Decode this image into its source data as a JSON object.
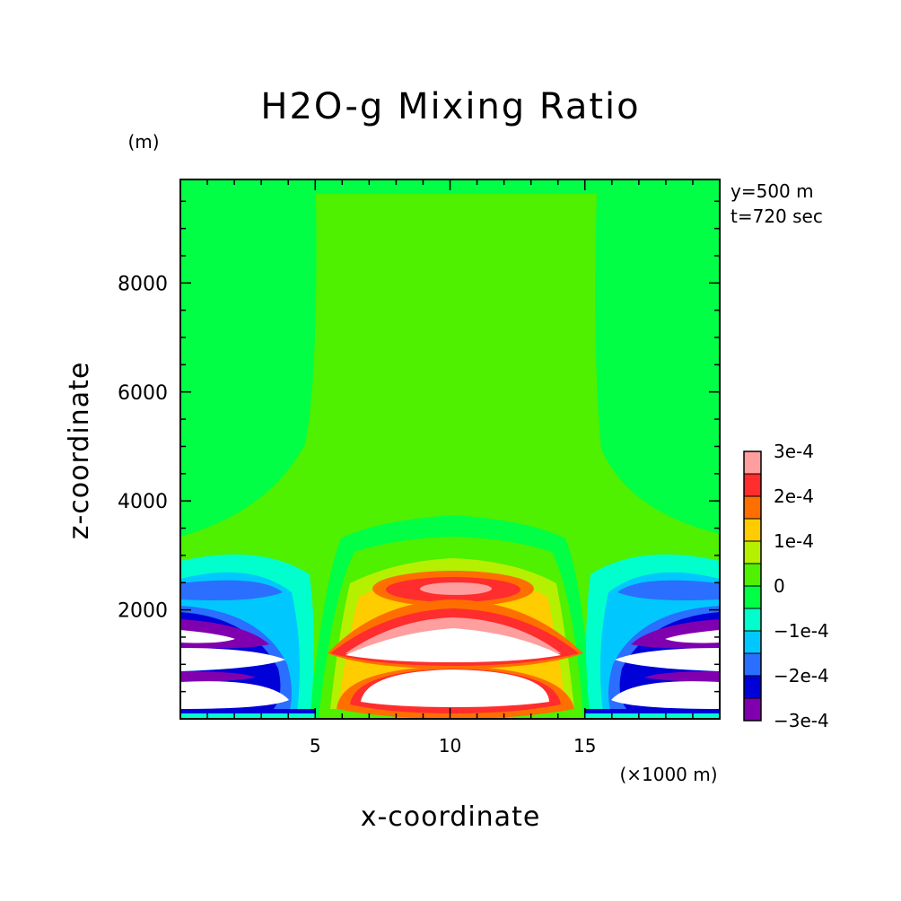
{
  "chart_data": {
    "type": "heatmap",
    "title": "H2O-g Mixing Ratio",
    "xlabel": "x-coordinate",
    "ylabel": "z-coordinate",
    "x_unit_label": "(×1000 m)",
    "y_unit_label": "(m)",
    "annotations": [
      "y=500 m",
      "t=720 sec"
    ],
    "xlim": [
      0,
      20
    ],
    "ylim": [
      0,
      9900
    ],
    "x_ticks": [
      5,
      10,
      15
    ],
    "y_ticks": [
      2000,
      4000,
      6000,
      8000
    ],
    "grid": false,
    "colorbar": {
      "placement": "right",
      "levels": [
        "3e-4",
        "2e-4",
        "1e-4",
        "0",
        "−1e-4",
        "−2e-4",
        "−3e-4"
      ],
      "colors": [
        "#ff9e9e",
        "#ff2d2d",
        "#ff6f00",
        "#ffcc00",
        "#b4f000",
        "#4ff000",
        "#00ff45",
        "#00ffcc",
        "#00c8ff",
        "#2a6fff",
        "#0000d8",
        "#8000b0"
      ]
    },
    "background_color": "#4ff000"
  }
}
